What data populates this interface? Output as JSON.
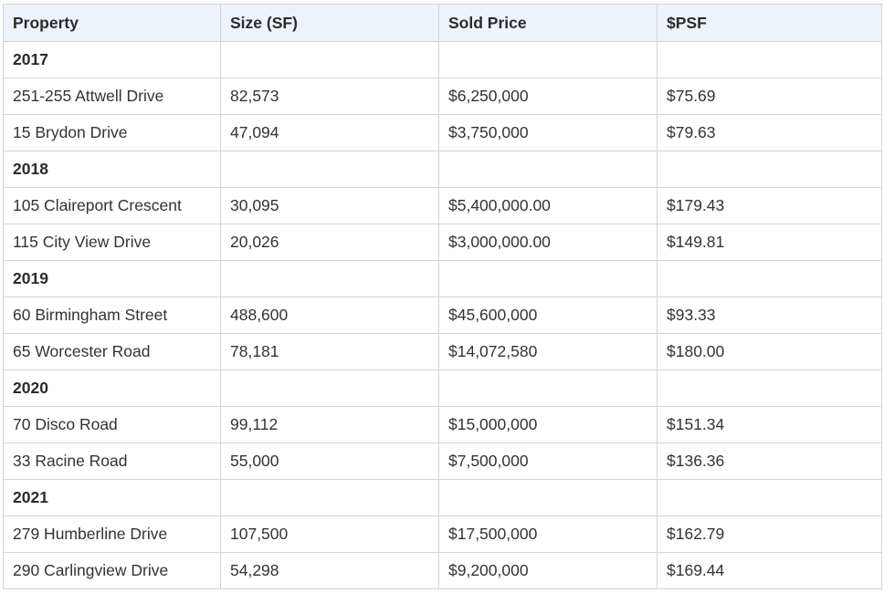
{
  "table": {
    "headers": [
      "Property",
      "Size (SF)",
      "Sold Price",
      "$PSF"
    ],
    "groups": [
      {
        "year": "2017",
        "rows": [
          [
            "251-255 Attwell Drive",
            "82,573",
            "$6,250,000",
            "$75.69"
          ],
          [
            "15 Brydon Drive",
            "47,094",
            "$3,750,000",
            "$79.63"
          ]
        ]
      },
      {
        "year": "2018",
        "rows": [
          [
            "105 Claireport Crescent",
            "30,095",
            "$5,400,000.00",
            "$179.43"
          ],
          [
            "115 City View Drive",
            "20,026",
            "$3,000,000.00",
            "$149.81"
          ]
        ]
      },
      {
        "year": "2019",
        "rows": [
          [
            "60 Birmingham Street",
            "488,600",
            "$45,600,000",
            "$93.33"
          ],
          [
            "65 Worcester Road",
            "78,181",
            "$14,072,580",
            "$180.00"
          ]
        ]
      },
      {
        "year": "2020",
        "rows": [
          [
            "70 Disco Road",
            "99,112",
            "$15,000,000",
            "$151.34"
          ],
          [
            "33 Racine Road",
            "55,000",
            "$7,500,000",
            "$136.36"
          ]
        ]
      },
      {
        "year": "2021",
        "rows": [
          [
            "279 Humberline Drive",
            "107,500",
            "$17,500,000",
            "$162.79"
          ],
          [
            "290 Carlingview Drive",
            "54,298",
            "$9,200,000",
            "$169.44"
          ]
        ]
      }
    ]
  }
}
